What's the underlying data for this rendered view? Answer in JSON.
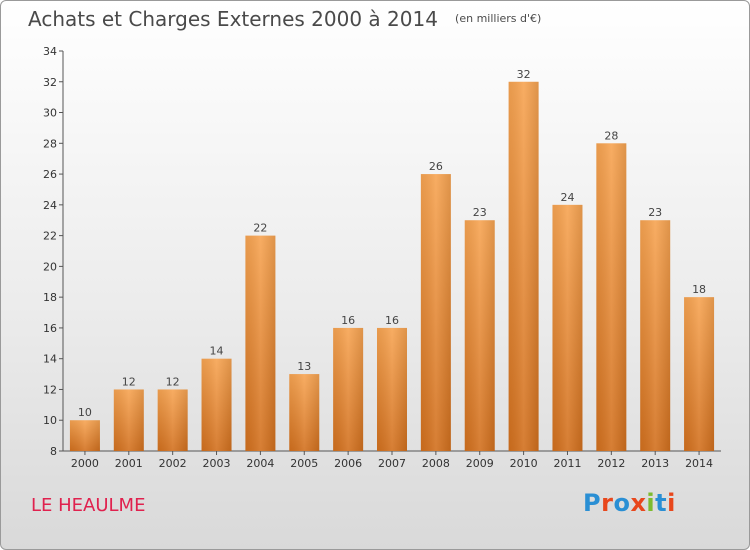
{
  "title": "Achats et Charges Externes 2000 à 2014",
  "subtitle": "(en milliers d'€)",
  "commune": "LE HEAULME",
  "logo": {
    "text": "Proxiti",
    "colors": [
      "#2a8fd4",
      "#e8471c",
      "#2a8fd4",
      "#e8471c",
      "#7dbb2e",
      "#2a8fd4",
      "#e8471c"
    ]
  },
  "chart_data": {
    "type": "bar",
    "categories": [
      "2000",
      "2001",
      "2002",
      "2003",
      "2004",
      "2005",
      "2006",
      "2007",
      "2008",
      "2009",
      "2010",
      "2011",
      "2012",
      "2013",
      "2014"
    ],
    "values": [
      10,
      12,
      12,
      14,
      22,
      13,
      16,
      16,
      26,
      23,
      32,
      24,
      28,
      23,
      18
    ],
    "ylim": [
      8,
      34
    ],
    "yticks": [
      8,
      10,
      12,
      14,
      16,
      18,
      20,
      22,
      24,
      26,
      28,
      30,
      32,
      34
    ],
    "grid": false,
    "bar_color": "#f0963c"
  }
}
